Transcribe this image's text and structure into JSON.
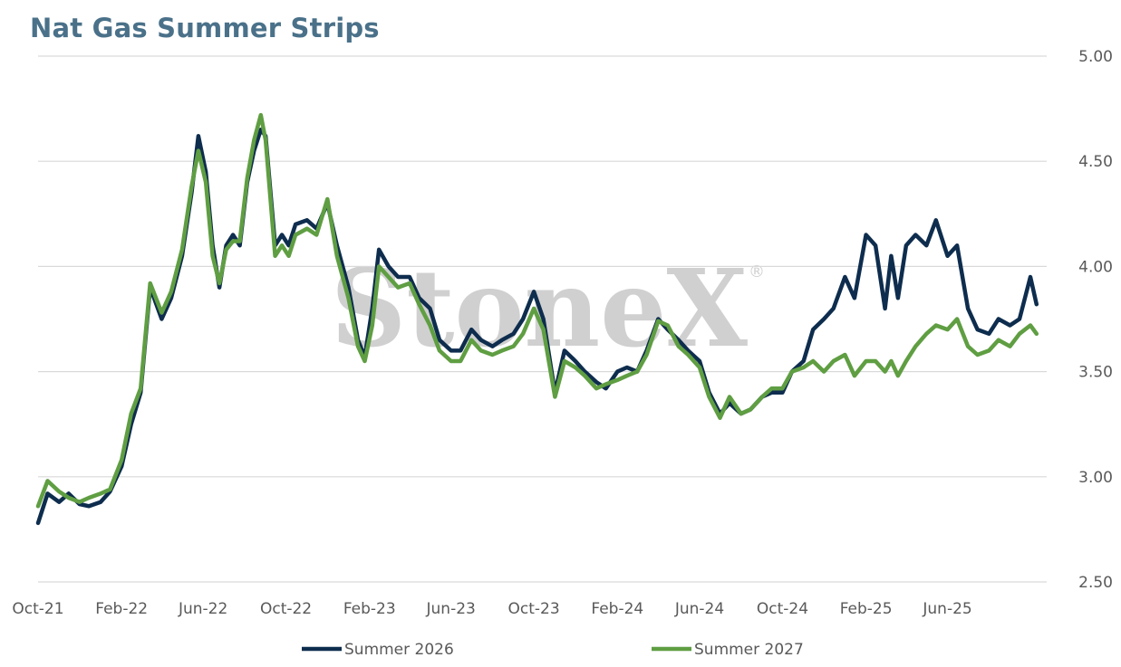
{
  "chart_data": {
    "type": "line",
    "title": "Nat Gas Summer Strips",
    "xlabel": "",
    "ylabel": "",
    "ylim": [
      2.5,
      5.0
    ],
    "xlim": [
      "2021-10-01",
      "2025-10-25"
    ],
    "grid": true,
    "y_ticks": [
      {
        "value": 5.0,
        "label": "5.00"
      },
      {
        "value": 4.5,
        "label": "4.50"
      },
      {
        "value": 4.0,
        "label": "4.00"
      },
      {
        "value": 3.5,
        "label": "3.50"
      },
      {
        "value": 3.0,
        "label": "3.00"
      },
      {
        "value": 2.5,
        "label": "2.50"
      }
    ],
    "x_ticks": [
      {
        "date": "2021-10-01",
        "label": "Oct-21"
      },
      {
        "date": "2022-02-01",
        "label": "Feb-22"
      },
      {
        "date": "2022-06-01",
        "label": "Jun-22"
      },
      {
        "date": "2022-10-01",
        "label": "Oct-22"
      },
      {
        "date": "2023-02-01",
        "label": "Feb-23"
      },
      {
        "date": "2023-06-01",
        "label": "Jun-23"
      },
      {
        "date": "2023-10-01",
        "label": "Oct-23"
      },
      {
        "date": "2024-02-01",
        "label": "Feb-24"
      },
      {
        "date": "2024-06-01",
        "label": "Jun-24"
      },
      {
        "date": "2024-10-01",
        "label": "Oct-24"
      },
      {
        "date": "2025-02-01",
        "label": "Feb-25"
      },
      {
        "date": "2025-06-01",
        "label": "Jun-25"
      }
    ],
    "legend_position": "bottom",
    "watermark": "StoneX",
    "watermark_mark": "®",
    "series": [
      {
        "name": "Summer 2026",
        "color": "#0e2d4e",
        "points": [
          [
            "2021-10-01",
            2.78
          ],
          [
            "2021-10-15",
            2.92
          ],
          [
            "2021-11-01",
            2.88
          ],
          [
            "2021-11-15",
            2.92
          ],
          [
            "2021-12-01",
            2.87
          ],
          [
            "2021-12-15",
            2.86
          ],
          [
            "2022-01-01",
            2.88
          ],
          [
            "2022-01-15",
            2.93
          ],
          [
            "2022-02-01",
            3.05
          ],
          [
            "2022-02-15",
            3.25
          ],
          [
            "2022-03-01",
            3.4
          ],
          [
            "2022-03-15",
            3.9
          ],
          [
            "2022-04-01",
            3.75
          ],
          [
            "2022-04-15",
            3.85
          ],
          [
            "2022-05-01",
            4.05
          ],
          [
            "2022-05-15",
            4.35
          ],
          [
            "2022-05-25",
            4.62
          ],
          [
            "2022-06-05",
            4.45
          ],
          [
            "2022-06-15",
            4.1
          ],
          [
            "2022-06-25",
            3.9
          ],
          [
            "2022-07-05",
            4.1
          ],
          [
            "2022-07-15",
            4.15
          ],
          [
            "2022-07-25",
            4.1
          ],
          [
            "2022-08-05",
            4.4
          ],
          [
            "2022-08-15",
            4.55
          ],
          [
            "2022-08-25",
            4.65
          ],
          [
            "2022-09-01",
            4.62
          ],
          [
            "2022-09-15",
            4.1
          ],
          [
            "2022-09-25",
            4.15
          ],
          [
            "2022-10-05",
            4.1
          ],
          [
            "2022-10-15",
            4.2
          ],
          [
            "2022-11-01",
            4.22
          ],
          [
            "2022-11-15",
            4.18
          ],
          [
            "2022-12-01",
            4.3
          ],
          [
            "2022-12-15",
            4.1
          ],
          [
            "2023-01-01",
            3.9
          ],
          [
            "2023-01-15",
            3.65
          ],
          [
            "2023-01-25",
            3.57
          ],
          [
            "2023-02-05",
            3.8
          ],
          [
            "2023-02-15",
            4.08
          ],
          [
            "2023-03-01",
            4.0
          ],
          [
            "2023-03-15",
            3.95
          ],
          [
            "2023-04-01",
            3.95
          ],
          [
            "2023-04-15",
            3.85
          ],
          [
            "2023-05-01",
            3.8
          ],
          [
            "2023-05-15",
            3.65
          ],
          [
            "2023-06-01",
            3.6
          ],
          [
            "2023-06-15",
            3.6
          ],
          [
            "2023-07-01",
            3.7
          ],
          [
            "2023-07-15",
            3.65
          ],
          [
            "2023-08-01",
            3.62
          ],
          [
            "2023-08-15",
            3.65
          ],
          [
            "2023-09-01",
            3.68
          ],
          [
            "2023-09-15",
            3.75
          ],
          [
            "2023-10-01",
            3.88
          ],
          [
            "2023-10-15",
            3.75
          ],
          [
            "2023-11-01",
            3.4
          ],
          [
            "2023-11-15",
            3.6
          ],
          [
            "2023-12-01",
            3.55
          ],
          [
            "2023-12-15",
            3.5
          ],
          [
            "2024-01-01",
            3.45
          ],
          [
            "2024-01-15",
            3.42
          ],
          [
            "2024-02-01",
            3.5
          ],
          [
            "2024-02-15",
            3.52
          ],
          [
            "2024-03-01",
            3.5
          ],
          [
            "2024-03-15",
            3.6
          ],
          [
            "2024-04-01",
            3.75
          ],
          [
            "2024-04-15",
            3.7
          ],
          [
            "2024-05-01",
            3.65
          ],
          [
            "2024-05-15",
            3.6
          ],
          [
            "2024-06-01",
            3.55
          ],
          [
            "2024-06-15",
            3.4
          ],
          [
            "2024-07-01",
            3.3
          ],
          [
            "2024-07-15",
            3.35
          ],
          [
            "2024-08-01",
            3.3
          ],
          [
            "2024-08-15",
            3.32
          ],
          [
            "2024-09-01",
            3.38
          ],
          [
            "2024-09-15",
            3.4
          ],
          [
            "2024-10-01",
            3.4
          ],
          [
            "2024-10-15",
            3.5
          ],
          [
            "2024-11-01",
            3.55
          ],
          [
            "2024-11-15",
            3.7
          ],
          [
            "2024-12-01",
            3.75
          ],
          [
            "2024-12-15",
            3.8
          ],
          [
            "2025-01-01",
            3.95
          ],
          [
            "2025-01-15",
            3.85
          ],
          [
            "2025-02-01",
            4.15
          ],
          [
            "2025-02-15",
            4.1
          ],
          [
            "2025-03-01",
            3.8
          ],
          [
            "2025-03-10",
            4.05
          ],
          [
            "2025-03-20",
            3.85
          ],
          [
            "2025-04-01",
            4.1
          ],
          [
            "2025-04-15",
            4.15
          ],
          [
            "2025-05-01",
            4.1
          ],
          [
            "2025-05-15",
            4.22
          ],
          [
            "2025-06-01",
            4.05
          ],
          [
            "2025-06-15",
            4.1
          ],
          [
            "2025-07-01",
            3.8
          ],
          [
            "2025-07-15",
            3.7
          ],
          [
            "2025-08-01",
            3.68
          ],
          [
            "2025-08-15",
            3.75
          ],
          [
            "2025-09-01",
            3.72
          ],
          [
            "2025-09-15",
            3.75
          ],
          [
            "2025-10-01",
            3.95
          ],
          [
            "2025-10-10",
            3.82
          ]
        ]
      },
      {
        "name": "Summer 2027",
        "color": "#5f9e42",
        "points": [
          [
            "2021-10-01",
            2.86
          ],
          [
            "2021-10-15",
            2.98
          ],
          [
            "2021-11-01",
            2.93
          ],
          [
            "2021-11-15",
            2.9
          ],
          [
            "2021-12-01",
            2.88
          ],
          [
            "2021-12-15",
            2.9
          ],
          [
            "2022-01-01",
            2.92
          ],
          [
            "2022-01-15",
            2.94
          ],
          [
            "2022-02-01",
            3.08
          ],
          [
            "2022-02-15",
            3.3
          ],
          [
            "2022-03-01",
            3.42
          ],
          [
            "2022-03-15",
            3.92
          ],
          [
            "2022-04-01",
            3.78
          ],
          [
            "2022-04-15",
            3.88
          ],
          [
            "2022-05-01",
            4.08
          ],
          [
            "2022-05-15",
            4.38
          ],
          [
            "2022-05-25",
            4.55
          ],
          [
            "2022-06-05",
            4.4
          ],
          [
            "2022-06-15",
            4.05
          ],
          [
            "2022-06-25",
            3.92
          ],
          [
            "2022-07-05",
            4.08
          ],
          [
            "2022-07-15",
            4.12
          ],
          [
            "2022-07-25",
            4.12
          ],
          [
            "2022-08-05",
            4.42
          ],
          [
            "2022-08-15",
            4.6
          ],
          [
            "2022-08-25",
            4.72
          ],
          [
            "2022-09-01",
            4.6
          ],
          [
            "2022-09-15",
            4.05
          ],
          [
            "2022-09-25",
            4.1
          ],
          [
            "2022-10-05",
            4.05
          ],
          [
            "2022-10-15",
            4.15
          ],
          [
            "2022-11-01",
            4.18
          ],
          [
            "2022-11-15",
            4.15
          ],
          [
            "2022-12-01",
            4.32
          ],
          [
            "2022-12-15",
            4.05
          ],
          [
            "2023-01-01",
            3.85
          ],
          [
            "2023-01-15",
            3.62
          ],
          [
            "2023-01-25",
            3.55
          ],
          [
            "2023-02-05",
            3.72
          ],
          [
            "2023-02-15",
            4.0
          ],
          [
            "2023-03-01",
            3.95
          ],
          [
            "2023-03-15",
            3.9
          ],
          [
            "2023-04-01",
            3.92
          ],
          [
            "2023-04-15",
            3.82
          ],
          [
            "2023-05-01",
            3.72
          ],
          [
            "2023-05-15",
            3.6
          ],
          [
            "2023-06-01",
            3.55
          ],
          [
            "2023-06-15",
            3.55
          ],
          [
            "2023-07-01",
            3.65
          ],
          [
            "2023-07-15",
            3.6
          ],
          [
            "2023-08-01",
            3.58
          ],
          [
            "2023-08-15",
            3.6
          ],
          [
            "2023-09-01",
            3.62
          ],
          [
            "2023-09-15",
            3.68
          ],
          [
            "2023-10-01",
            3.8
          ],
          [
            "2023-10-15",
            3.7
          ],
          [
            "2023-11-01",
            3.38
          ],
          [
            "2023-11-15",
            3.55
          ],
          [
            "2023-12-01",
            3.52
          ],
          [
            "2023-12-15",
            3.48
          ],
          [
            "2024-01-01",
            3.42
          ],
          [
            "2024-01-15",
            3.44
          ],
          [
            "2024-02-01",
            3.46
          ],
          [
            "2024-02-15",
            3.48
          ],
          [
            "2024-03-01",
            3.5
          ],
          [
            "2024-03-15",
            3.58
          ],
          [
            "2024-04-01",
            3.74
          ],
          [
            "2024-04-15",
            3.72
          ],
          [
            "2024-05-01",
            3.62
          ],
          [
            "2024-05-15",
            3.58
          ],
          [
            "2024-06-01",
            3.52
          ],
          [
            "2024-06-15",
            3.38
          ],
          [
            "2024-07-01",
            3.28
          ],
          [
            "2024-07-15",
            3.38
          ],
          [
            "2024-08-01",
            3.3
          ],
          [
            "2024-08-15",
            3.32
          ],
          [
            "2024-09-01",
            3.38
          ],
          [
            "2024-09-15",
            3.42
          ],
          [
            "2024-10-01",
            3.42
          ],
          [
            "2024-10-15",
            3.5
          ],
          [
            "2024-11-01",
            3.52
          ],
          [
            "2024-11-15",
            3.55
          ],
          [
            "2024-12-01",
            3.5
          ],
          [
            "2024-12-15",
            3.55
          ],
          [
            "2025-01-01",
            3.58
          ],
          [
            "2025-01-15",
            3.48
          ],
          [
            "2025-02-01",
            3.55
          ],
          [
            "2025-02-15",
            3.55
          ],
          [
            "2025-03-01",
            3.5
          ],
          [
            "2025-03-10",
            3.55
          ],
          [
            "2025-03-20",
            3.48
          ],
          [
            "2025-04-01",
            3.55
          ],
          [
            "2025-04-15",
            3.62
          ],
          [
            "2025-05-01",
            3.68
          ],
          [
            "2025-05-15",
            3.72
          ],
          [
            "2025-06-01",
            3.7
          ],
          [
            "2025-06-15",
            3.75
          ],
          [
            "2025-07-01",
            3.62
          ],
          [
            "2025-07-15",
            3.58
          ],
          [
            "2025-08-01",
            3.6
          ],
          [
            "2025-08-15",
            3.65
          ],
          [
            "2025-09-01",
            3.62
          ],
          [
            "2025-09-15",
            3.68
          ],
          [
            "2025-10-01",
            3.72
          ],
          [
            "2025-10-10",
            3.68
          ]
        ]
      }
    ]
  }
}
